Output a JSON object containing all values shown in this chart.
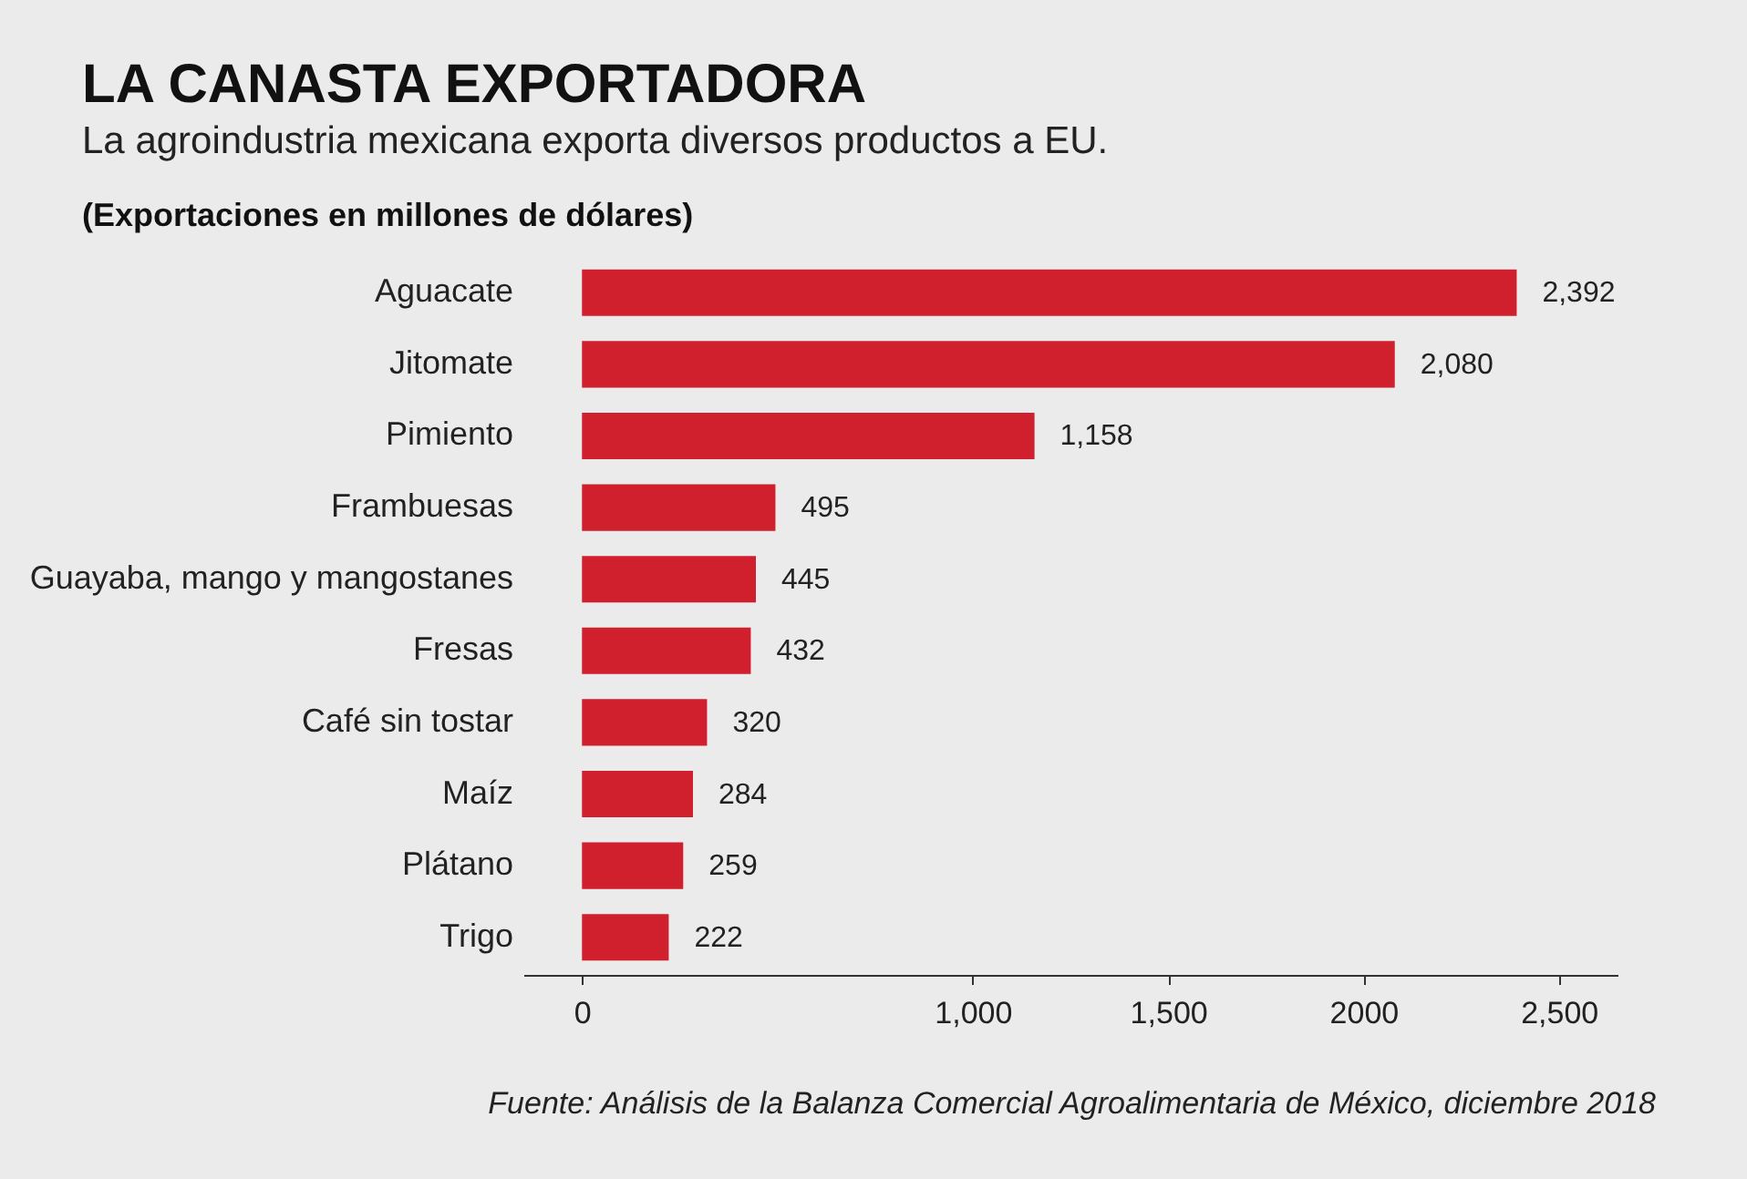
{
  "chart_data": {
    "type": "bar",
    "orientation": "horizontal",
    "title": "LA CANASTA EXPORTADORA",
    "subtitle": "La agroindustria mexicana exporta diversos productos a EU.",
    "categories": [
      "Aguacate",
      "Jitomate",
      "Pimiento",
      "Frambuesas",
      "Guayaba, mango y mangostanes",
      "Fresas",
      "Café sin tostar",
      "Maíz",
      "Plátano",
      "Trigo"
    ],
    "values": [
      2392,
      2080,
      1158,
      495,
      445,
      432,
      320,
      284,
      259,
      222
    ],
    "color": "#d0202e",
    "value_labels": [
      "2,392",
      "2,080",
      "1,158",
      "495",
      "445",
      "432",
      "320",
      "284",
      "259",
      "222"
    ],
    "xlim": [
      -150,
      2650
    ],
    "xticks": [
      0,
      {
        "value": 1000,
        "label": "1,000"
      },
      {
        "value": 1500,
        "label": "1,500"
      },
      2000,
      {
        "value": 2500,
        "label": "2,500"
      }
    ],
    "annotations": [
      "(Exportaciones en millones de dólares)",
      "Fuente: Análisis de la Balanza Comercial Agroalimentaria de México, diciembre 2018"
    ]
  }
}
